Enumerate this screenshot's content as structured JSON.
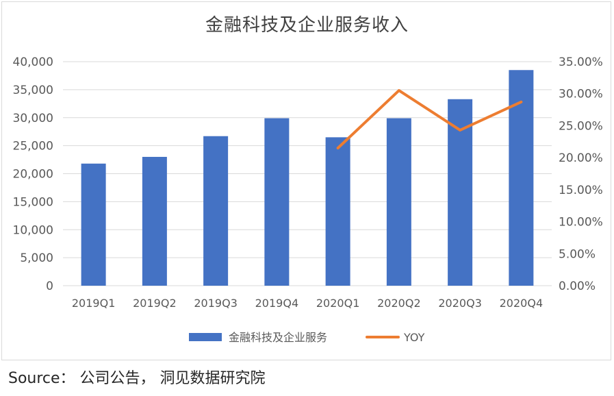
{
  "chart_data": {
    "type": "bar",
    "title": "金融科技及企业服务收入",
    "categories": [
      "2019Q1",
      "2019Q2",
      "2019Q3",
      "2019Q4",
      "2020Q1",
      "2020Q2",
      "2020Q3",
      "2020Q4"
    ],
    "series": [
      {
        "name": "金融科技及企业服务",
        "type": "bar",
        "axis": "left",
        "color": "#4472C4",
        "values": [
          21800,
          23000,
          26700,
          29900,
          26500,
          29900,
          33300,
          38500
        ]
      },
      {
        "name": "YOY",
        "type": "line",
        "axis": "right",
        "color": "#ED7D31",
        "values": [
          null,
          null,
          null,
          null,
          0.215,
          0.305,
          0.243,
          0.287
        ]
      }
    ],
    "y_left": {
      "ylim": [
        0,
        40000
      ],
      "ticks": [
        0,
        5000,
        10000,
        15000,
        20000,
        25000,
        30000,
        35000,
        40000
      ],
      "tick_labels": [
        "0",
        "5,000",
        "10,000",
        "15,000",
        "20,000",
        "25,000",
        "30,000",
        "35,000",
        "40,000"
      ]
    },
    "y_right": {
      "ylim": [
        0,
        0.35
      ],
      "ticks": [
        0,
        0.05,
        0.1,
        0.15,
        0.2,
        0.25,
        0.3,
        0.35
      ],
      "tick_labels": [
        "0.00%",
        "5.00%",
        "10.00%",
        "15.00%",
        "20.00%",
        "25.00%",
        "30.00%",
        "35.00%"
      ]
    },
    "grid": true,
    "legend": "bottom-center",
    "xlabel": "",
    "ylabel": ""
  },
  "source_text": "Source：  公司公告，  洞见数据研究院"
}
